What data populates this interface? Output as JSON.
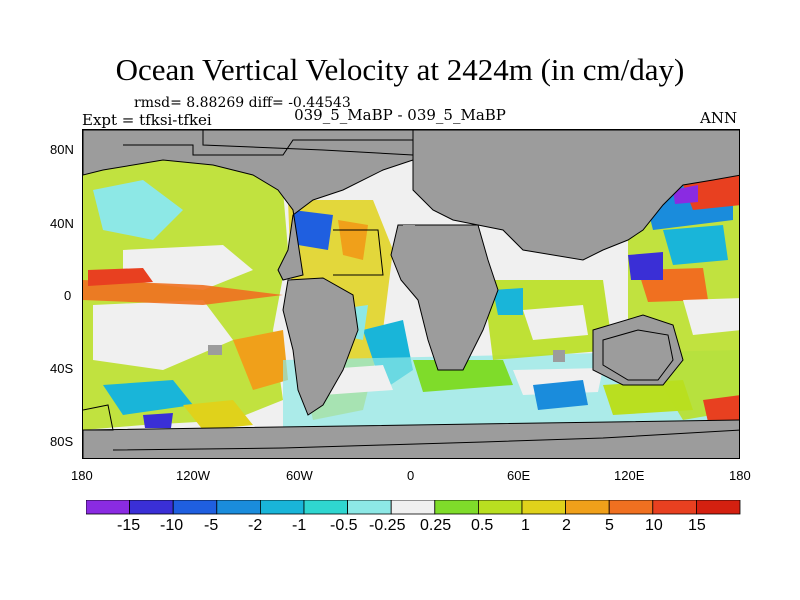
{
  "title": "Ocean Vertical Velocity at 2424m (in cm/day)",
  "stats_line": "rmsd= 8.88269 diff= -0.44543",
  "expt_line": "Expt = tfksi-tfkei",
  "runs_line": "039_5_MaBP - 039_5_MaBP",
  "season": "ANN",
  "axes": {
    "y_ticks": [
      "80N",
      "40N",
      "0",
      "40S",
      "80S"
    ],
    "x_ticks": [
      "180",
      "120W",
      "60W",
      "0",
      "60E",
      "120E",
      "180"
    ]
  },
  "legend": {
    "labels": [
      "-15",
      "-10",
      "-5",
      "-2",
      "-1",
      "-0.5",
      "-0.25",
      "0.25",
      "0.5",
      "1",
      "2",
      "5",
      "10",
      "15"
    ],
    "colors": [
      "#8a2be2",
      "#3a2fd6",
      "#1f5fe0",
      "#1a8cdc",
      "#19b5d9",
      "#2fd6d0",
      "#8de8e6",
      "#f0f0f0",
      "#7fdc2a",
      "#b9df20",
      "#e0d21b",
      "#f0a01a",
      "#f07020",
      "#e84020",
      "#d42010"
    ]
  },
  "colors": {
    "land": "#9c9c9c",
    "coast": "#000000"
  }
}
